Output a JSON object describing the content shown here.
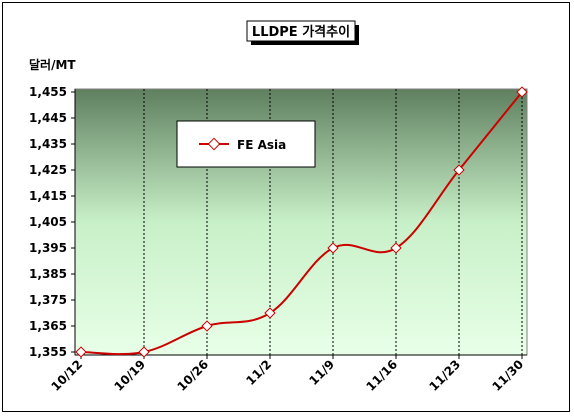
{
  "chart_data": {
    "type": "line",
    "title": "LLDPE 가격추이",
    "ylabel": "달러/MT",
    "xlabel": "",
    "categories": [
      "10/12",
      "10/19",
      "10/26",
      "11/2",
      "11/9",
      "11/16",
      "11/23",
      "11/30"
    ],
    "ylim": [
      1355,
      1455
    ],
    "yticks": [
      1355,
      1365,
      1375,
      1385,
      1395,
      1405,
      1415,
      1425,
      1435,
      1445,
      1455
    ],
    "ytick_labels": [
      "1,355",
      "1,365",
      "1,375",
      "1,385",
      "1,395",
      "1,405",
      "1,415",
      "1,425",
      "1,435",
      "1,445",
      "1,455"
    ],
    "grid": "vertical",
    "legend": "top-left",
    "series": [
      {
        "name": "FE Asia",
        "color": "#cc0000",
        "values": [
          1355,
          1355,
          1365,
          1370,
          1395,
          1395,
          1425,
          1455
        ]
      }
    ]
  }
}
